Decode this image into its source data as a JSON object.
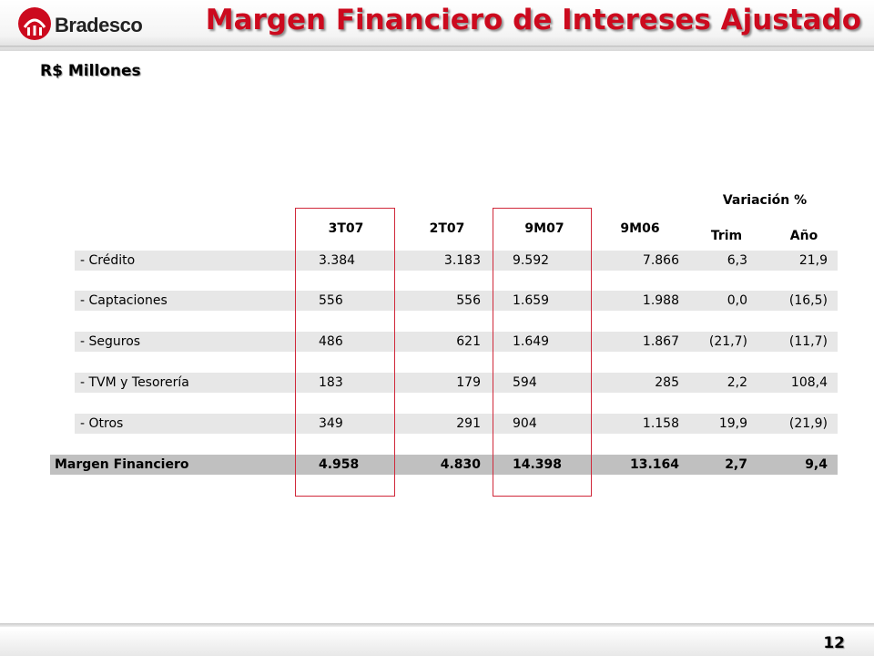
{
  "header": {
    "logo_text": "Bradesco",
    "title": "Margen Financiero de Intereses Ajustado",
    "subtitle": "R$ Millones"
  },
  "table": {
    "variation_label": "Variación %",
    "columns": [
      "3T07",
      "2T07",
      "9M07",
      "9M06"
    ],
    "variation_columns": [
      "Trim",
      "Año"
    ],
    "rows": [
      {
        "label": "- Crédito",
        "values": [
          "3.384",
          "3.183",
          "9.592",
          "7.866",
          "6,3",
          "21,9"
        ]
      },
      {
        "label": "- Captaciones",
        "values": [
          "556",
          "556",
          "1.659",
          "1.988",
          "0,0",
          "(16,5)"
        ]
      },
      {
        "label": "- Seguros",
        "values": [
          "486",
          "621",
          "1.649",
          "1.867",
          "(21,7)",
          "(11,7)"
        ]
      },
      {
        "label": "- TVM y Tesorería",
        "values": [
          "183",
          "179",
          "594",
          "285",
          "2,2",
          "108,4"
        ]
      },
      {
        "label": "- Otros",
        "values": [
          "349",
          "291",
          "904",
          "1.158",
          "19,9",
          "(21,9)"
        ]
      }
    ],
    "total": {
      "label": "Margen Financiero",
      "values": [
        "4.958",
        "4.830",
        "14.398",
        "13.164",
        "2,7",
        "9,4"
      ]
    }
  },
  "footer": {
    "page_number": "12"
  },
  "colors": {
    "title_red": "#cc0a1e",
    "highlight_border": "#d0283a",
    "row_bg": "#e7e7e7",
    "total_bg": "#c0c0c0"
  }
}
